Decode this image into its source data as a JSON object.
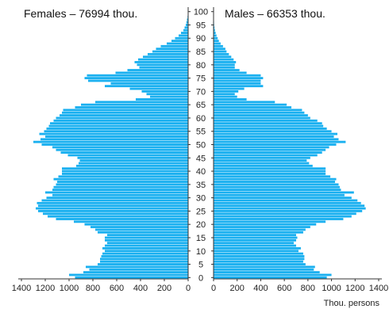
{
  "chart_data": {
    "type": "bar",
    "orientation": "horizontal-population-pyramid",
    "age_min": 0,
    "age_max": 100,
    "age_ticks": [
      0,
      5,
      10,
      15,
      20,
      25,
      30,
      35,
      40,
      45,
      50,
      55,
      60,
      65,
      70,
      75,
      80,
      85,
      90,
      95,
      100
    ],
    "x_ticks": [
      1400,
      1200,
      1000,
      800,
      600,
      400,
      200,
      0
    ],
    "x_range": [
      0,
      1400
    ],
    "xlabel": "Thou. persons",
    "colors": {
      "bar": "#1ab0f0",
      "axis": "#333333"
    },
    "series": [
      {
        "name": "Females",
        "title": "Females  – 76994 thou.",
        "side": "left",
        "values": [
          950,
          1000,
          880,
          830,
          860,
          760,
          740,
          740,
          730,
          720,
          700,
          720,
          700,
          680,
          700,
          700,
          680,
          760,
          780,
          820,
          870,
          960,
          1110,
          1180,
          1220,
          1260,
          1280,
          1260,
          1270,
          1230,
          1190,
          1140,
          1200,
          1140,
          1130,
          1110,
          1100,
          1130,
          1090,
          1060,
          1060,
          1060,
          940,
          920,
          910,
          930,
          1010,
          1070,
          1110,
          1140,
          1230,
          1300,
          1240,
          1200,
          1250,
          1210,
          1190,
          1170,
          1160,
          1130,
          1110,
          1080,
          1060,
          1050,
          950,
          900,
          780,
          440,
          320,
          350,
          390,
          490,
          700,
          650,
          840,
          870,
          850,
          610,
          510,
          410,
          430,
          450,
          420,
          380,
          340,
          300,
          270,
          230,
          180,
          140,
          110,
          80,
          60,
          40,
          30,
          20,
          15,
          10,
          5,
          3,
          2
        ]
      },
      {
        "name": "Males",
        "title": "Males  – 66353 thou.",
        "side": "right",
        "values": [
          960,
          1000,
          900,
          850,
          860,
          780,
          760,
          770,
          770,
          760,
          720,
          740,
          700,
          680,
          700,
          710,
          700,
          760,
          780,
          820,
          870,
          950,
          1100,
          1170,
          1210,
          1260,
          1290,
          1280,
          1250,
          1220,
          1170,
          1110,
          1190,
          1080,
          1070,
          1060,
          1030,
          1040,
          990,
          950,
          950,
          950,
          840,
          810,
          790,
          820,
          880,
          920,
          950,
          980,
          1040,
          1120,
          1060,
          1020,
          1050,
          1000,
          960,
          930,
          920,
          880,
          820,
          800,
          770,
          750,
          660,
          620,
          520,
          280,
          200,
          180,
          210,
          260,
          420,
          400,
          400,
          420,
          400,
          280,
          220,
          180,
          180,
          190,
          170,
          150,
          130,
          110,
          100,
          80,
          60,
          45,
          35,
          25,
          18,
          12,
          8,
          5,
          4,
          3,
          2,
          1,
          1
        ]
      }
    ]
  }
}
